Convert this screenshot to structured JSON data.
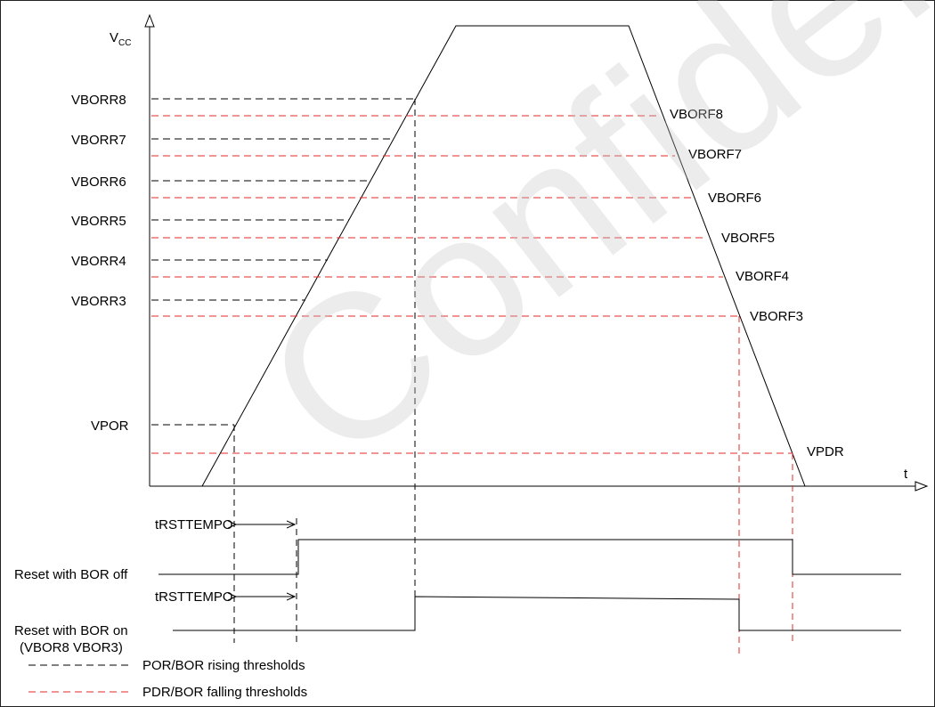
{
  "axes": {
    "y_label": "V",
    "y_label_sub": "CC",
    "x_label": "t"
  },
  "rising_thresholds": [
    "VBORR8",
    "VBORR7",
    "VBORR6",
    "VBORR5",
    "VBORR4",
    "VBORR3",
    "VPOR"
  ],
  "falling_thresholds": [
    "VBORF8",
    "VBORF7",
    "VBORF6",
    "VBORF5",
    "VBORF4",
    "VBORF3",
    "VPDR"
  ],
  "timing": {
    "tempo_label_1": "tRSTTEMPO",
    "tempo_label_2": "tRSTTEMPO",
    "signal_bor_off": "Reset with BOR off",
    "signal_bor_on_line1": "Reset with BOR on",
    "signal_bor_on_line2": "(VBOR8 VBOR3)"
  },
  "legend": {
    "rising": "POR/BOR rising thresholds",
    "falling": "PDR/BOR falling thresholds"
  },
  "colors": {
    "rising": "#000000",
    "falling": "#e0282a",
    "watermark": "#c8c8c8"
  },
  "watermark": "Confidential"
}
